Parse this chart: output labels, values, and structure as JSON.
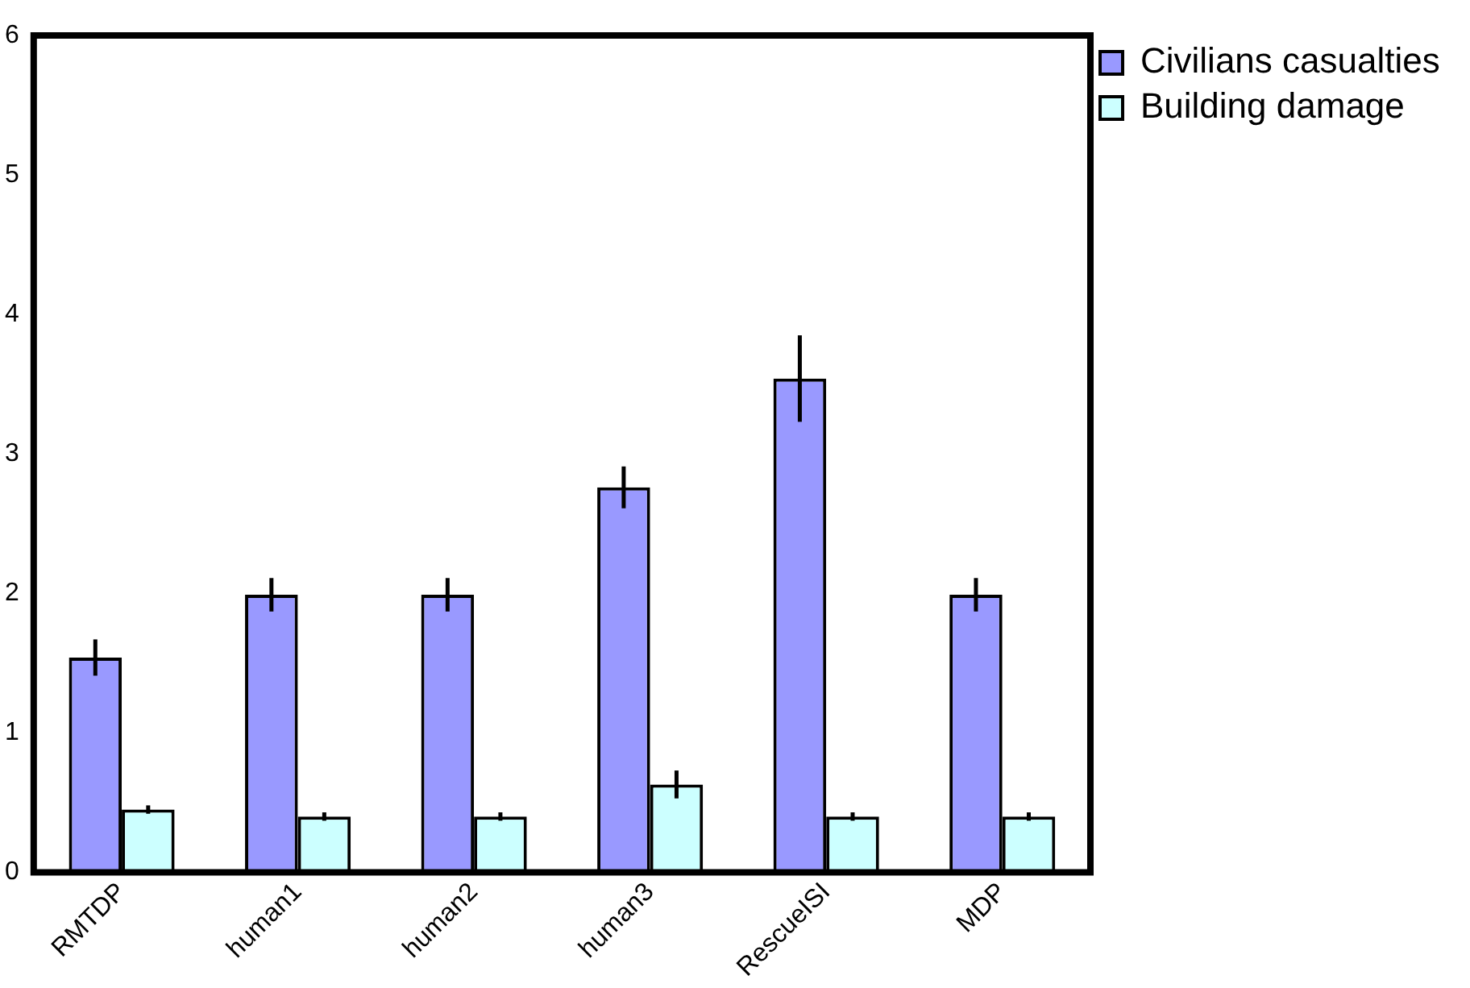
{
  "chart_data": {
    "type": "bar",
    "categories": [
      "RMTDP",
      "human1",
      "human2",
      "human3",
      "RescueISI",
      "MDP"
    ],
    "series": [
      {
        "name": "Civilians casualties",
        "color": "#9999ff",
        "values": [
          1.54,
          1.99,
          1.99,
          2.76,
          3.54,
          1.99
        ],
        "errors": [
          0.13,
          0.12,
          0.12,
          0.15,
          0.31,
          0.12
        ]
      },
      {
        "name": "Building damage",
        "color": "#ccffff",
        "values": [
          0.45,
          0.4,
          0.4,
          0.63,
          0.4,
          0.4
        ],
        "errors": [
          0.03,
          0.03,
          0.03,
          0.1,
          0.03,
          0.03
        ]
      }
    ],
    "ylim": [
      0,
      6
    ],
    "yticks": [
      0,
      1,
      2,
      3,
      4,
      5,
      6
    ],
    "grid": false,
    "legend": "top right"
  }
}
